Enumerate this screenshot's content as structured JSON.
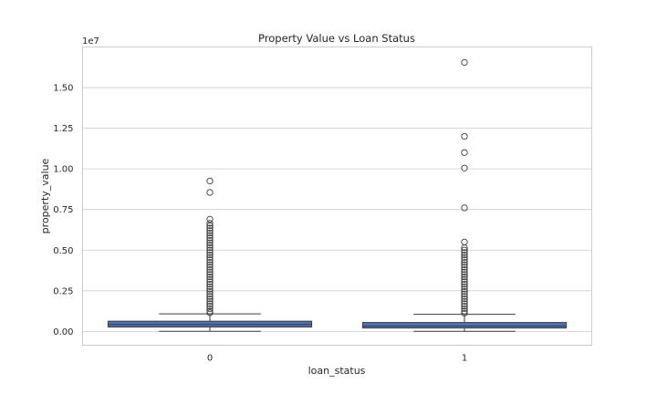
{
  "chart_data": {
    "type": "boxplot",
    "title": "Property Value vs Loan Status",
    "xlabel": "loan_status",
    "ylabel": "property_value",
    "y_offset_text": "1e7",
    "y_scale_factor": 10000000,
    "ylim": [
      -850000,
      17500000
    ],
    "yticks": [
      0,
      2500000,
      5000000,
      7500000,
      10000000,
      12500000,
      15000000
    ],
    "ytick_labels": [
      "0.00",
      "0.25",
      "0.50",
      "0.75",
      "1.00",
      "1.25",
      "1.50"
    ],
    "categories": [
      "0",
      "1"
    ],
    "grid": true,
    "box_color": "#4c72b0",
    "boxes": [
      {
        "category": "0",
        "whisker_low": 8000,
        "q1": 268000,
        "median": 418000,
        "q3": 628000,
        "whisker_high": 1080000,
        "fliers": [
          9250000,
          8550000,
          6900000,
          6650000,
          6500000,
          6350000,
          6200000,
          6050000,
          5900000,
          5750000,
          5600000,
          5450000,
          5300000,
          5150000,
          5000000,
          4850000,
          4700000,
          4550000,
          4400000,
          4250000,
          4100000,
          3950000,
          3800000,
          3650000,
          3500000,
          3350000,
          3200000,
          3050000,
          2900000,
          2750000,
          2600000,
          2450000,
          2300000,
          2150000,
          2000000,
          1850000,
          1700000,
          1550000,
          1400000,
          1250000,
          1150000
        ]
      },
      {
        "category": "1",
        "whisker_low": 8000,
        "q1": 208000,
        "median": 328000,
        "q3": 548000,
        "whisker_high": 1050000,
        "fliers": [
          16550000,
          12000000,
          11000000,
          10050000,
          7600000,
          5500000,
          5150000,
          5000000,
          4850000,
          4700000,
          4550000,
          4400000,
          4250000,
          4100000,
          3950000,
          3800000,
          3650000,
          3500000,
          3350000,
          3200000,
          3050000,
          2900000,
          2750000,
          2600000,
          2450000,
          2300000,
          2150000,
          2000000,
          1850000,
          1700000,
          1550000,
          1400000,
          1250000,
          1120000
        ]
      }
    ]
  }
}
